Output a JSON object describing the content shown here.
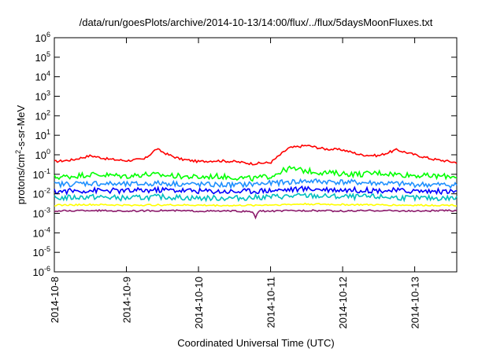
{
  "chart_data": {
    "type": "line",
    "title": "/data/run/goesPlots/archive/2014-10-13/14:00/flux/../flux/5daysMoonFluxes.txt",
    "xlabel": "Coordinated Universal Time (UTC)",
    "ylabel_parts": {
      "base": "protons/cm",
      "sup": "2",
      "rest": "-s-sr-MeV"
    },
    "y_scale": "log",
    "ylim": [
      1e-06,
      1000000.0
    ],
    "y_ticks": [
      {
        "base": "10",
        "exp": "-6"
      },
      {
        "base": "10",
        "exp": "-5"
      },
      {
        "base": "10",
        "exp": "-4"
      },
      {
        "base": "10",
        "exp": "-3"
      },
      {
        "base": "10",
        "exp": "-2"
      },
      {
        "base": "10",
        "exp": "-1"
      },
      {
        "base": "10",
        "exp": "0"
      },
      {
        "base": "10",
        "exp": "1"
      },
      {
        "base": "10",
        "exp": "2"
      },
      {
        "base": "10",
        "exp": "3"
      },
      {
        "base": "10",
        "exp": "4"
      },
      {
        "base": "10",
        "exp": "5"
      },
      {
        "base": "10",
        "exp": "6"
      }
    ],
    "x_range": [
      "2014-10-08",
      "2014-10-13T14:00"
    ],
    "x_ticks": [
      "2014-10-8",
      "2014-10-9",
      "2014-10-10",
      "2014-10-11",
      "2014-10-12",
      "2014-10-13"
    ],
    "grid": false,
    "legend": "none",
    "series": [
      {
        "color": "#ff0000",
        "x": [
          "2014-10-08T00:00",
          "2014-10-08T06:00",
          "2014-10-08T12:00",
          "2014-10-08T18:00",
          "2014-10-09T00:00",
          "2014-10-09T06:00",
          "2014-10-09T10:00",
          "2014-10-09T14:00",
          "2014-10-09T18:00",
          "2014-10-10T00:00",
          "2014-10-10T06:00",
          "2014-10-10T12:00",
          "2014-10-10T18:00",
          "2014-10-11T00:00",
          "2014-10-11T06:00",
          "2014-10-11T12:00",
          "2014-10-11T18:00",
          "2014-10-12T00:00",
          "2014-10-12T06:00",
          "2014-10-12T12:00",
          "2014-10-12T18:00",
          "2014-10-13T00:00",
          "2014-10-13T06:00",
          "2014-10-13T14:00"
        ],
        "values": [
          0.45,
          0.55,
          0.9,
          0.6,
          0.5,
          0.6,
          2.0,
          1.0,
          0.6,
          0.45,
          0.5,
          0.45,
          0.35,
          0.4,
          2.2,
          3.0,
          2.0,
          1.8,
          1.0,
          0.9,
          1.8,
          1.0,
          0.6,
          0.4
        ]
      },
      {
        "color": "#00ff00",
        "x": [
          "2014-10-08T00:00",
          "2014-10-08T06:00",
          "2014-10-08T12:00",
          "2014-10-08T18:00",
          "2014-10-09T00:00",
          "2014-10-09T06:00",
          "2014-10-09T12:00",
          "2014-10-09T18:00",
          "2014-10-10T00:00",
          "2014-10-10T06:00",
          "2014-10-10T12:00",
          "2014-10-10T18:00",
          "2014-10-11T00:00",
          "2014-10-11T06:00",
          "2014-10-11T12:00",
          "2014-10-11T18:00",
          "2014-10-12T00:00",
          "2014-10-12T06:00",
          "2014-10-12T12:00",
          "2014-10-12T18:00",
          "2014-10-13T00:00",
          "2014-10-13T06:00",
          "2014-10-13T14:00"
        ],
        "values": [
          0.07,
          0.08,
          0.1,
          0.09,
          0.08,
          0.1,
          0.09,
          0.08,
          0.07,
          0.08,
          0.07,
          0.06,
          0.08,
          0.2,
          0.15,
          0.12,
          0.11,
          0.1,
          0.12,
          0.1,
          0.09,
          0.08,
          0.08
        ]
      },
      {
        "color": "#1e90ff",
        "x": [
          "2014-10-08T00:00",
          "2014-10-08T12:00",
          "2014-10-09T00:00",
          "2014-10-09T12:00",
          "2014-10-10T00:00",
          "2014-10-10T12:00",
          "2014-10-11T00:00",
          "2014-10-11T12:00",
          "2014-10-12T00:00",
          "2014-10-12T12:00",
          "2014-10-13T00:00",
          "2014-10-13T14:00"
        ],
        "values": [
          0.03,
          0.035,
          0.03,
          0.035,
          0.03,
          0.028,
          0.035,
          0.045,
          0.04,
          0.035,
          0.03,
          0.028
        ]
      },
      {
        "color": "#0000ff",
        "x": [
          "2014-10-08T00:00",
          "2014-10-08T12:00",
          "2014-10-09T00:00",
          "2014-10-09T12:00",
          "2014-10-10T00:00",
          "2014-10-10T12:00",
          "2014-10-11T00:00",
          "2014-10-11T12:00",
          "2014-10-12T00:00",
          "2014-10-12T12:00",
          "2014-10-13T00:00",
          "2014-10-13T14:00"
        ],
        "values": [
          0.013,
          0.015,
          0.014,
          0.016,
          0.014,
          0.013,
          0.015,
          0.018,
          0.016,
          0.015,
          0.014,
          0.013
        ]
      },
      {
        "color": "#00bfbf",
        "x": [
          "2014-10-08T00:00",
          "2014-10-08T12:00",
          "2014-10-09T00:00",
          "2014-10-09T12:00",
          "2014-10-10T00:00",
          "2014-10-10T12:00",
          "2014-10-11T00:00",
          "2014-10-11T12:00",
          "2014-10-12T00:00",
          "2014-10-12T12:00",
          "2014-10-13T00:00",
          "2014-10-13T14:00"
        ],
        "values": [
          0.006,
          0.007,
          0.006,
          0.007,
          0.006,
          0.006,
          0.007,
          0.008,
          0.007,
          0.007,
          0.006,
          0.006
        ]
      },
      {
        "color": "#ffff00",
        "x": [
          "2014-10-08T00:00",
          "2014-10-08T12:00",
          "2014-10-09T00:00",
          "2014-10-09T12:00",
          "2014-10-10T00:00",
          "2014-10-10T12:00",
          "2014-10-11T00:00",
          "2014-10-11T12:00",
          "2014-10-12T00:00",
          "2014-10-12T12:00",
          "2014-10-13T00:00",
          "2014-10-13T14:00"
        ],
        "values": [
          0.0026,
          0.0028,
          0.0026,
          0.0027,
          0.0026,
          0.0025,
          0.0027,
          0.003,
          0.0028,
          0.0027,
          0.0026,
          0.0026
        ]
      },
      {
        "color": "#8b1a6b",
        "x": [
          "2014-10-08T00:00",
          "2014-10-08T12:00",
          "2014-10-09T00:00",
          "2014-10-09T12:00",
          "2014-10-10T00:00",
          "2014-10-10T12:00",
          "2014-10-10T18:00",
          "2014-10-10T19:00",
          "2014-10-10T20:00",
          "2014-10-11T00:00",
          "2014-10-11T12:00",
          "2014-10-12T00:00",
          "2014-10-12T12:00",
          "2014-10-13T00:00",
          "2014-10-13T14:00"
        ],
        "values": [
          0.0013,
          0.0014,
          0.0013,
          0.0014,
          0.0013,
          0.0013,
          0.0012,
          0.0006,
          0.0013,
          0.0013,
          0.0014,
          0.0013,
          0.0014,
          0.0013,
          0.0014
        ]
      }
    ]
  }
}
